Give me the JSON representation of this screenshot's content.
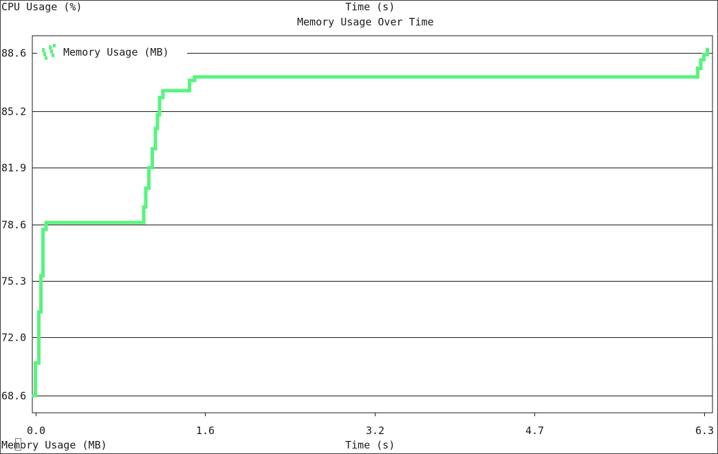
{
  "header": {
    "left_label": "CPU Usage (%)",
    "center_label": "Time (s)"
  },
  "footer": {
    "left_label": "Memory Usage (MB)",
    "center_label": "Time (s)"
  },
  "colors": {
    "series": "#57f47f",
    "axis": "#1a1a1a",
    "grid": "#1a1a1a"
  },
  "chart_data": {
    "type": "line",
    "title": "Memory Usage Over Time",
    "xlabel": "Time (s)",
    "ylabel": "",
    "xlim": [
      -0.03,
      6.38
    ],
    "ylim": [
      67.6,
      89.6
    ],
    "x_ticks": [
      0.0,
      1.6,
      3.2,
      4.7,
      6.3
    ],
    "x_tick_labels": [
      "0.0",
      "1.6",
      "3.2",
      "4.7",
      "6.3"
    ],
    "y_ticks": [
      68.6,
      72.0,
      75.3,
      78.6,
      81.9,
      85.2,
      88.6
    ],
    "y_tick_labels": [
      "68.6",
      "72.0",
      "75.3",
      "78.6",
      "81.9",
      "85.2",
      "88.6"
    ],
    "grid": "horizontal",
    "legend": "top-left",
    "series": [
      {
        "name": "Memory Usage (MB)",
        "x": [
          -0.02,
          0.0,
          0.03,
          0.05,
          0.07,
          0.1,
          0.2,
          0.5,
          0.8,
          1.0,
          1.02,
          1.04,
          1.07,
          1.1,
          1.13,
          1.15,
          1.17,
          1.2,
          1.3,
          1.4,
          1.45,
          1.5,
          2.0,
          3.0,
          4.0,
          5.0,
          5.9,
          6.15,
          6.24,
          6.27,
          6.3,
          6.33
        ],
        "values": [
          68.6,
          70.5,
          73.5,
          75.6,
          78.3,
          78.7,
          78.7,
          78.7,
          78.7,
          78.7,
          79.6,
          80.7,
          81.9,
          83.0,
          84.2,
          85.0,
          86.0,
          86.4,
          86.4,
          86.4,
          87.0,
          87.2,
          87.2,
          87.2,
          87.2,
          87.2,
          87.2,
          87.2,
          87.7,
          88.2,
          88.5,
          88.8
        ]
      }
    ]
  }
}
